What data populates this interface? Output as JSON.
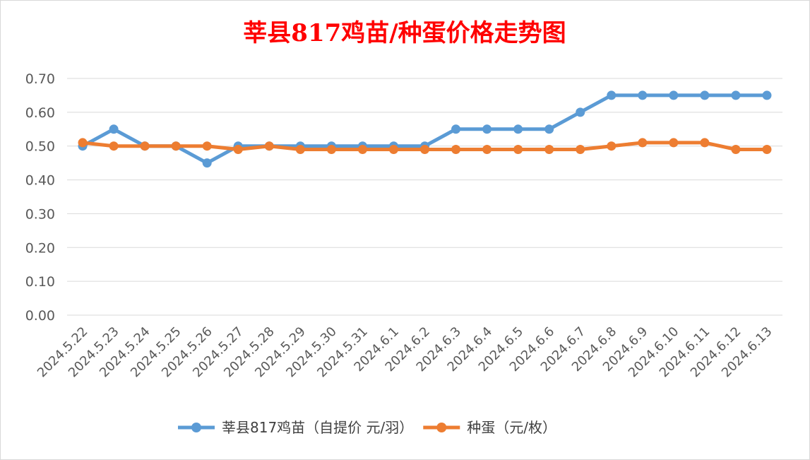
{
  "chart_data": {
    "type": "line",
    "title": "莘县817鸡苗/种蛋价格走势图",
    "categories": [
      "2024.5.22",
      "2024.5.23",
      "2024.5.24",
      "2024.5.25",
      "2024.5.26",
      "2024.5.27",
      "2024.5.28",
      "2024.5.29",
      "2024.5.30",
      "2024.5.31",
      "2024.6.1",
      "2024.6.2",
      "2024.6.3",
      "2024.6.4",
      "2024.6.5",
      "2024.6.6",
      "2024.6.7",
      "2024.6.8",
      "2024.6.9",
      "2024.6.10",
      "2024.6.11",
      "2024.6.12",
      "2024.6.13"
    ],
    "series": [
      {
        "name": "莘县817鸡苗（自提价 元/羽）",
        "color": "#5b9bd5",
        "values": [
          0.5,
          0.55,
          0.5,
          0.5,
          0.45,
          0.5,
          0.5,
          0.5,
          0.5,
          0.5,
          0.5,
          0.5,
          0.55,
          0.55,
          0.55,
          0.55,
          0.6,
          0.65,
          0.65,
          0.65,
          0.65,
          0.65,
          0.65
        ]
      },
      {
        "name": "种蛋（元/枚）",
        "color": "#ed7d31",
        "values": [
          0.51,
          0.5,
          0.5,
          0.5,
          0.5,
          0.49,
          0.5,
          0.49,
          0.49,
          0.49,
          0.49,
          0.49,
          0.49,
          0.49,
          0.49,
          0.49,
          0.49,
          0.5,
          0.51,
          0.51,
          0.51,
          0.49,
          0.49
        ]
      }
    ],
    "yticks": [
      "0.00",
      "0.10",
      "0.20",
      "0.30",
      "0.40",
      "0.50",
      "0.60",
      "0.70"
    ],
    "ylim": [
      0,
      0.7
    ],
    "grid": true,
    "legend_position": "bottom"
  }
}
